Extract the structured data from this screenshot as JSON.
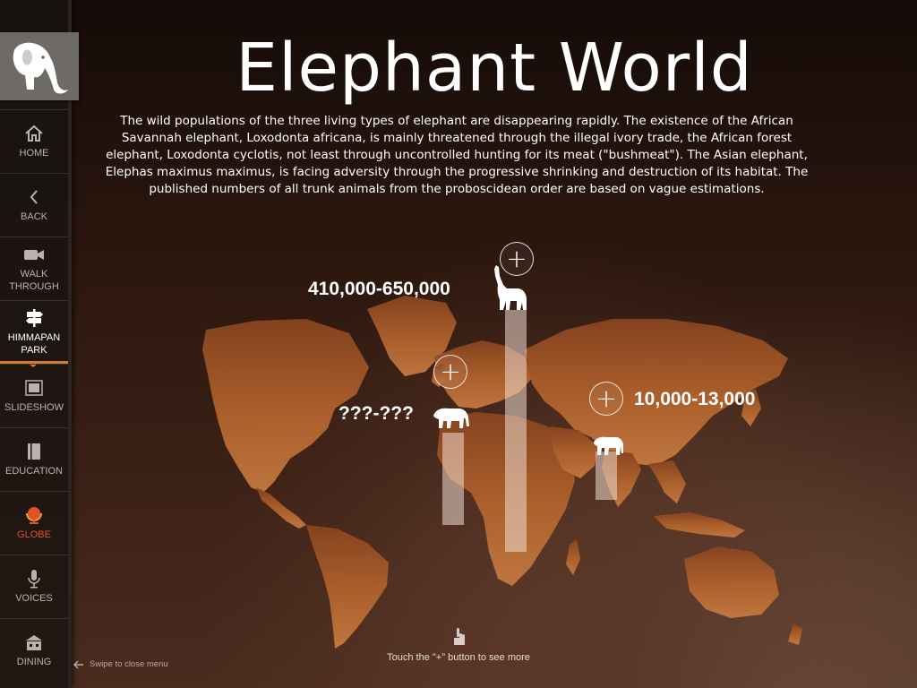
{
  "app": {
    "title": "Elephant World",
    "description": "The wild populations of the three living types of elephant are disappearing rapidly. The existence of the African Savannah elephant, Loxodonta africana, is mainly threatened through the illegal ivory trade, the African forest elephant, Loxodonta cyclotis, not least through uncontrolled hunting for its meat (\"bushmeat\"). The Asian elephant, Elephas maximus maximus, is facing adversity through the progressive shrinking and destruction of its habitat. The published numbers of all trunk animals from the proboscidean order are based on vague estimations."
  },
  "sidebar": {
    "logo_icon": "elephant-logo-icon",
    "items": [
      {
        "label": "HOME",
        "icon": "home-icon"
      },
      {
        "label": "BACK",
        "icon": "chevron-left-icon"
      },
      {
        "label": "WALK\nTHROUGH",
        "icon": "video-camera-icon"
      },
      {
        "label": "HIMMAPAN\nPARK",
        "icon": "signpost-icon",
        "active": true
      },
      {
        "label": "SLIDESHOW",
        "icon": "slideshow-icon"
      },
      {
        "label": "EDUCATION",
        "icon": "book-icon"
      },
      {
        "label": "GLOBE",
        "icon": "globe-icon",
        "highlight_color": "#e2522a"
      },
      {
        "label": "VOICES",
        "icon": "microphone-icon"
      },
      {
        "label": "DINING",
        "icon": "restaurant-icon"
      }
    ]
  },
  "populations": [
    {
      "label": "???-???",
      "icon": "elephant-icon",
      "fill_fraction": 0.38
    },
    {
      "label": "410,000-650,000",
      "icon": "elephant-trumpeting-icon",
      "fill_fraction": 1.0
    },
    {
      "label": "10,000-13,000",
      "icon": "elephant-icon",
      "fill_fraction": 0.2
    }
  ],
  "plus_label": "+",
  "hints": {
    "swipe": "Swipe to close menu",
    "touch": "Touch the \"+\" button to see more"
  },
  "colors": {
    "accent": "#d87a2a",
    "globe": "#e2522a",
    "map_land": "#b8612a"
  }
}
